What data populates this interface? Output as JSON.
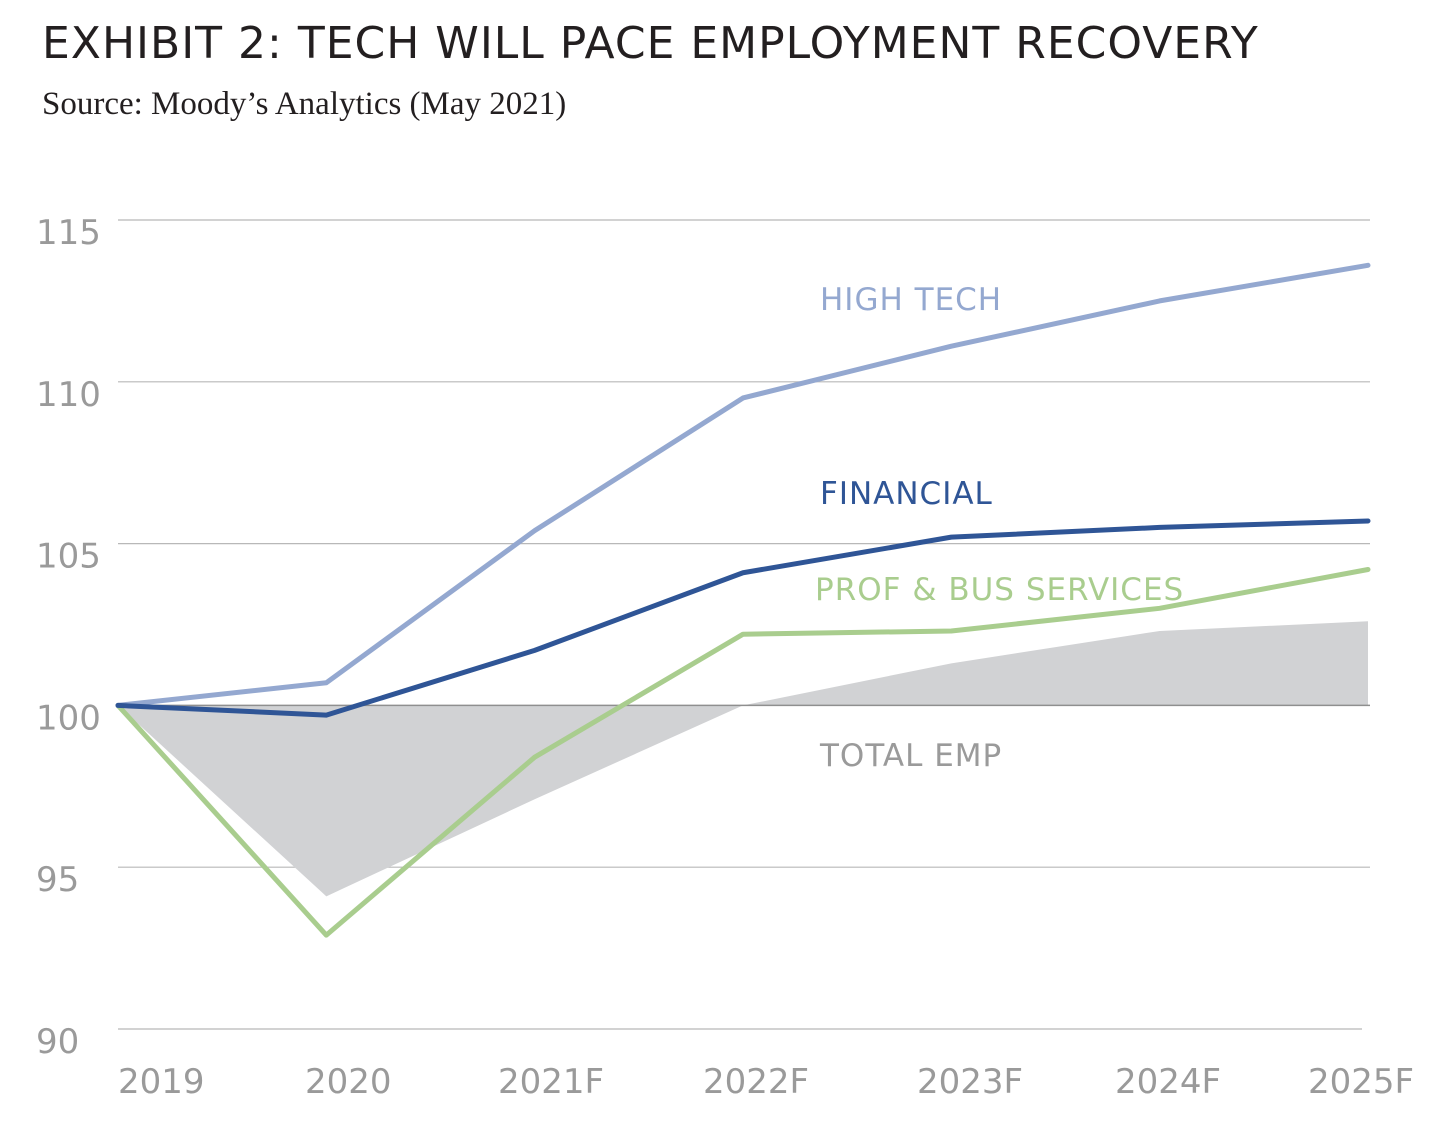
{
  "title": "EXHIBIT 2: TECH WILL PACE EMPLOYMENT RECOVERY",
  "subtitle": "Source: Moody’s Analytics (May 2021)",
  "chart_data": {
    "type": "line",
    "title": "EXHIBIT 2: TECH WILL PACE EMPLOYMENT RECOVERY",
    "subtitle": "Source: Moody’s Analytics (May 2021)",
    "categories": [
      "2019",
      "2020",
      "2021F",
      "2022F",
      "2023F",
      "2024F",
      "2025F"
    ],
    "ylim": [
      90,
      115
    ],
    "yticks": [
      90,
      95,
      100,
      105,
      110,
      115
    ],
    "grid": true,
    "baseline": 100,
    "series": [
      {
        "name": "HIGH TECH",
        "type": "line",
        "color": "#94a8d0",
        "values": [
          100,
          100.7,
          105.4,
          109.5,
          111.1,
          112.5,
          113.6
        ]
      },
      {
        "name": "FINANCIAL",
        "type": "line",
        "color": "#2f5596",
        "values": [
          100,
          99.7,
          101.7,
          104.1,
          105.2,
          105.5,
          105.7
        ]
      },
      {
        "name": "PROF & BUS SERVICES",
        "type": "line",
        "color": "#a9cd8e",
        "values": [
          100,
          92.9,
          98.4,
          102.2,
          102.3,
          103.0,
          104.2
        ]
      },
      {
        "name": "TOTAL EMP",
        "type": "area",
        "color": "#d1d2d4",
        "values": [
          100,
          94.1,
          97.1,
          100.0,
          101.3,
          102.3,
          102.6
        ]
      }
    ]
  }
}
